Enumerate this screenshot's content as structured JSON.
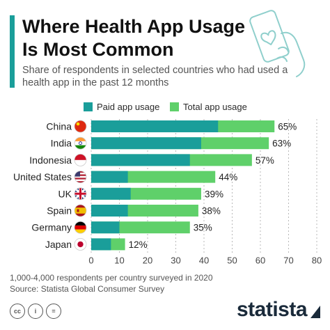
{
  "header": {
    "title": "Where Health App Usage Is Most Common",
    "subtitle": "Share of respondents in selected countries who had used a health app in the past 12 months"
  },
  "legend": {
    "items": [
      {
        "label": "Paid app usage",
        "color": "#1a9e9a"
      },
      {
        "label": "Total app usage",
        "color": "#5fd06a"
      }
    ]
  },
  "chart_data": {
    "type": "bar",
    "orientation": "horizontal",
    "stacked": "overlay",
    "categories": [
      "China",
      "India",
      "Indonesia",
      "United States",
      "UK",
      "Spain",
      "Germany",
      "Japan"
    ],
    "series": [
      {
        "name": "Paid app usage",
        "color": "#1a9e9a",
        "values": [
          45,
          39,
          35,
          13,
          14,
          13,
          10,
          7
        ]
      },
      {
        "name": "Total app usage",
        "color": "#5fd06a",
        "values": [
          65,
          63,
          57,
          44,
          39,
          38,
          35,
          12
        ]
      }
    ],
    "data_labels": [
      "65%",
      "63%",
      "57%",
      "44%",
      "39%",
      "38%",
      "35%",
      "12%"
    ],
    "xlim": [
      0,
      80
    ],
    "xticks": [
      "0",
      "10",
      "20",
      "30",
      "40",
      "50",
      "60",
      "70",
      "80"
    ],
    "grid": "vertical dashed",
    "legend_position": "top"
  },
  "flags": [
    "china-flag-icon",
    "india-flag-icon",
    "indonesia-flag-icon",
    "usa-flag-icon",
    "uk-flag-icon",
    "spain-flag-icon",
    "germany-flag-icon",
    "japan-flag-icon"
  ],
  "footer": {
    "note": "1,000-4,000 respondents per country surveyed in 2020",
    "source": "Source: Statista Global Consumer Survey",
    "brand": "statista",
    "badges": [
      "cc",
      "i",
      "="
    ]
  },
  "icons": {
    "illustration": "phone-heart-icon"
  }
}
